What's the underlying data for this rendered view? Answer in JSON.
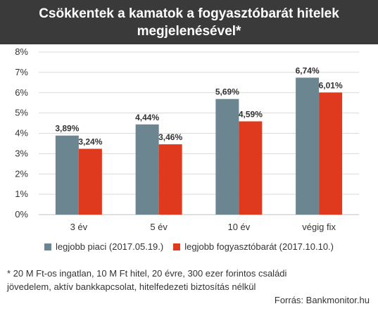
{
  "header": {
    "title_line1": "Csökkentek a kamatok a fogyasztóbarát hitelek",
    "title_line2": "megjelenésével*"
  },
  "footnote": {
    "line1": "* 20 M Ft-os ingatlan, 10 M Ft hitel, 20 évre, 300 ezer forintos családi",
    "line2": "jövedelem, aktív bankkapcsolat, hitelfedezeti biztosítás nélkül",
    "source": "Forrás: Bankmonitor.hu"
  },
  "colors": {
    "series1": "#6b8591",
    "series2": "#e03a1e",
    "grid": "#d9d9d9",
    "title_bg": "#3a3a3a"
  },
  "chart_data": {
    "type": "bar",
    "categories": [
      "3 év",
      "5 év",
      "10 év",
      "végig fix"
    ],
    "series": [
      {
        "name": "legjobb piaci (2017.05.19.)",
        "values": [
          3.89,
          4.44,
          5.69,
          6.74
        ],
        "labels": [
          "3,89%",
          "4,44%",
          "5,69%",
          "6,74%"
        ]
      },
      {
        "name": "legjobb fogyasztóbarát (2017.10.10.)",
        "values": [
          3.24,
          3.46,
          4.59,
          6.01
        ],
        "labels": [
          "3,24%",
          "3,46%",
          "4,59%",
          "6,01%"
        ]
      }
    ],
    "ylim": [
      0,
      8
    ],
    "yticks": [
      "0%",
      "1%",
      "2%",
      "3%",
      "4%",
      "5%",
      "6%",
      "7%",
      "8%"
    ],
    "grid": true,
    "legend_position": "bottom"
  }
}
